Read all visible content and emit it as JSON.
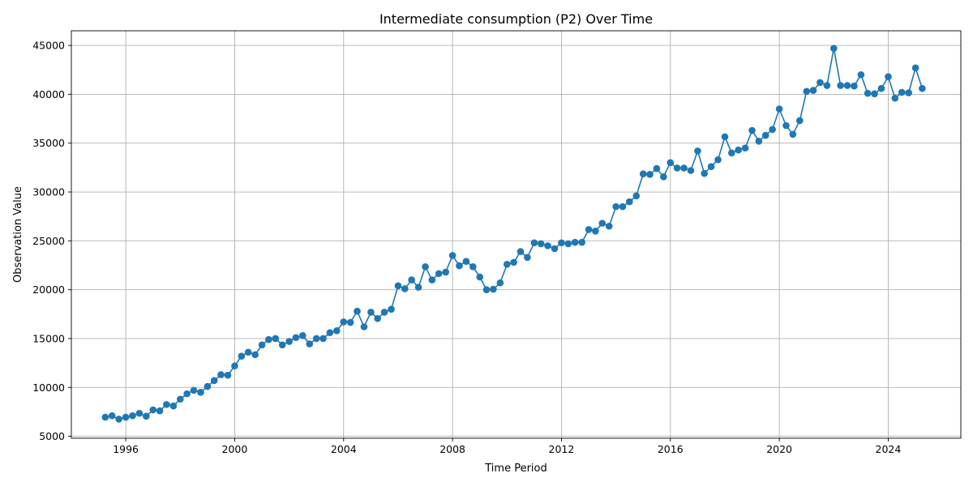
{
  "chart_data": {
    "type": "line",
    "title": "Intermediate consumption (P2) Over Time",
    "xlabel": "Time Period",
    "ylabel": "Observation Value",
    "xlim": [
      "1994-01-01",
      "2026-09-01"
    ],
    "ylim": [
      4800,
      46500
    ],
    "xticks": [
      "1996",
      "2000",
      "2004",
      "2008",
      "2012",
      "2016",
      "2020",
      "2024"
    ],
    "yticks": [
      "5000",
      "10000",
      "15000",
      "20000",
      "25000",
      "30000",
      "35000",
      "40000",
      "45000"
    ],
    "grid": true,
    "line_color": "#1f77b4",
    "marker": "circle",
    "series": [
      {
        "x": [
          "1995-04-01",
          "1995-07-01",
          "1995-10-01",
          "1996-01-01",
          "1996-04-01",
          "1996-07-01",
          "1996-10-01",
          "1997-01-01",
          "1997-04-01",
          "1997-07-01",
          "1997-10-01",
          "1998-01-01",
          "1998-04-01",
          "1998-07-01",
          "1998-10-01",
          "1999-01-01",
          "1999-04-01",
          "1999-07-01",
          "1999-10-01",
          "2000-01-01",
          "2000-04-01",
          "2000-07-01",
          "2000-10-01",
          "2001-01-01",
          "2001-04-01",
          "2001-07-01",
          "2001-10-01",
          "2002-01-01",
          "2002-04-01",
          "2002-07-01",
          "2002-10-01",
          "2003-01-01",
          "2003-04-01",
          "2003-07-01",
          "2003-10-01",
          "2004-01-01",
          "2004-04-01",
          "2004-07-01",
          "2004-10-01",
          "2005-01-01",
          "2005-04-01",
          "2005-07-01",
          "2005-10-01",
          "2006-01-01",
          "2006-04-01",
          "2006-07-01",
          "2006-10-01",
          "2007-01-01",
          "2007-04-01",
          "2007-07-01",
          "2007-10-01",
          "2008-01-01",
          "2008-04-01",
          "2008-07-01",
          "2008-10-01",
          "2009-01-01",
          "2009-04-01",
          "2009-07-01",
          "2009-10-01",
          "2010-01-01",
          "2010-04-01",
          "2010-07-01",
          "2010-10-01",
          "2011-01-01",
          "2011-04-01",
          "2011-07-01",
          "2011-10-01",
          "2012-01-01",
          "2012-04-01",
          "2012-07-01",
          "2012-10-01",
          "2013-01-01",
          "2013-04-01",
          "2013-07-01",
          "2013-10-01",
          "2014-01-01",
          "2014-04-01",
          "2014-07-01",
          "2014-10-01",
          "2015-01-01",
          "2015-04-01",
          "2015-07-01",
          "2015-10-01",
          "2016-01-01",
          "2016-04-01",
          "2016-07-01",
          "2016-10-01",
          "2017-01-01",
          "2017-04-01",
          "2017-07-01",
          "2017-10-01",
          "2018-01-01",
          "2018-04-01",
          "2018-07-01",
          "2018-10-01",
          "2019-01-01",
          "2019-04-01",
          "2019-07-01",
          "2019-10-01",
          "2020-01-01",
          "2020-04-01",
          "2020-07-01",
          "2020-10-01",
          "2021-01-01",
          "2021-04-01",
          "2021-07-01",
          "2021-10-01",
          "2022-01-01",
          "2022-04-01",
          "2022-07-01",
          "2022-10-01",
          "2023-01-01",
          "2023-04-01",
          "2023-07-01",
          "2023-10-01",
          "2024-01-01",
          "2024-04-01",
          "2024-07-01",
          "2024-10-01",
          "2025-01-01",
          "2025-04-01"
        ],
        "y": [
          6950,
          7100,
          6750,
          6950,
          7100,
          7350,
          7050,
          7700,
          7600,
          8250,
          8100,
          8800,
          9350,
          9700,
          9500,
          10100,
          10700,
          11300,
          11250,
          12200,
          13200,
          13600,
          13350,
          14350,
          14900,
          15000,
          14350,
          14700,
          15100,
          15300,
          14450,
          15000,
          15000,
          15600,
          15800,
          16700,
          16650,
          17800,
          16200,
          17700,
          17050,
          17700,
          18000,
          20400,
          20100,
          21000,
          20250,
          22350,
          21000,
          21650,
          21800,
          23500,
          22450,
          22900,
          22350,
          21300,
          20000,
          20050,
          20700,
          22600,
          22800,
          23900,
          23300,
          24800,
          24700,
          24500,
          24200,
          24800,
          24700,
          24850,
          24850,
          26150,
          26000,
          26800,
          26500,
          28500,
          28500,
          29000,
          29600,
          31850,
          31800,
          32400,
          31550,
          33000,
          32450,
          32450,
          32200,
          34200,
          31900,
          32600,
          33300,
          35650,
          34000,
          34300,
          34500,
          36300,
          35200,
          35800,
          36400,
          38500,
          36800,
          35900,
          37300,
          40300,
          40400,
          41200,
          40900,
          44700,
          40900,
          40900,
          40850,
          42000,
          40100,
          40050,
          40600,
          41800,
          39600,
          40200,
          40150,
          42700,
          40600
        ]
      }
    ]
  }
}
